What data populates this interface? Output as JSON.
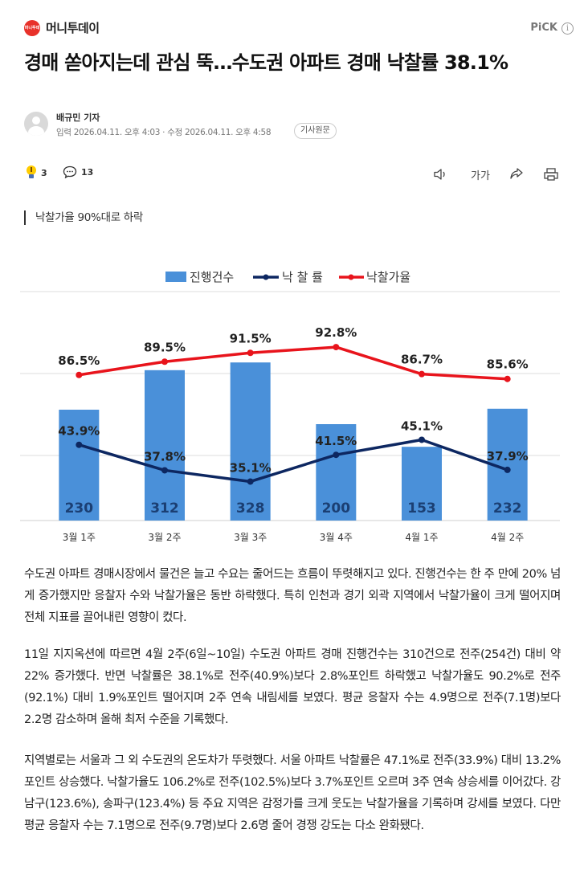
{
  "header": {
    "logo_text": "머니투데이",
    "brand": "머니투데이",
    "pick_label": "PiCK",
    "info_icon": "info-icon"
  },
  "article": {
    "title": "경매 쏟아지는데 관심 뚝…수도권 아파트 경매 낙찰률 38.1%",
    "reporter": "배규민 기자",
    "published": "입력 2026.04.11. 오후 4:03",
    "modified": "수정 2026.04.11. 오후 4:58",
    "original_button": "기사원문",
    "reactions": {
      "like_count": "3",
      "comment_count": "13"
    },
    "lede": "낙찰가율 90%대로 하락",
    "paragraphs": [
      "수도권 아파트 경매시장에서 물건은 늘고 수요는 줄어드는 흐름이 뚜렷해지고 있다. 진행건수는 한 주 만에 20% 넘게 증가했지만 응찰자 수와 낙찰가율은 동반 하락했다. 특히 인천과 경기 외곽 지역에서 낙찰가율이 크게 떨어지며 전체 지표를 끌어내린 영향이 컸다.",
      "11일 지지옥션에 따르면 4월 2주(6일~10일) 수도권 아파트 경매 진행건수는 310건으로 전주(254건) 대비 약 22% 증가했다. 반면 낙찰률은 38.1%로 전주(40.9%)보다 2.8%포인트 하락했고 낙찰가율도 90.2%로 전주(92.1%) 대비 1.9%포인트 떨어지며 2주 연속 내림세를 보였다. 평균 응찰자 수는 4.9명으로 전주(7.1명)보다 2.2명 감소하며 올해 최저 수준을 기록했다.",
      "지역별로는 서울과 그 외 수도권의 온도차가 뚜렷했다. 서울 아파트 낙찰률은 47.1%로 전주(33.9%) 대비 13.2%포인트 상승했다. 낙찰가율도 106.2%로 전주(102.5%)보다 3.7%포인트 오르며 3주 연속 상승세를 이어갔다. 강남구(123.6%), 송파구(123.4%) 등 주요 지역은 감정가를 크게 웃도는 낙찰가율을 기록하며 강세를 보였다. 다만 평균 응찰자 수는 7.1명으로 전주(9.7명)보다 2.6명 줄어 경쟁 강도는 다소 완화됐다."
    ]
  },
  "toolbar": {
    "audio_icon": "speaker-icon",
    "font_label": "가가",
    "share_icon": "share-icon",
    "print_icon": "print-icon"
  },
  "chart_data": {
    "type": "bar",
    "categories": [
      "3월 1주",
      "3월 2주",
      "3월 3주",
      "3월 4주",
      "4월 1주",
      "4월 2주"
    ],
    "series": [
      {
        "name": "진행건수",
        "kind": "bar",
        "color": "#4a90d9",
        "values": [
          230,
          312,
          328,
          200,
          153,
          232
        ]
      },
      {
        "name": "낙 찰 률",
        "kind": "line",
        "color": "#0d2761",
        "values": [
          43.9,
          37.8,
          35.1,
          41.5,
          45.1,
          37.9
        ],
        "labels": [
          "43.9%",
          "37.8%",
          "35.1%",
          "41.5%",
          "45.1%",
          "37.9%"
        ]
      },
      {
        "name": "낙찰가율",
        "kind": "line",
        "color": "#e8141c",
        "values": [
          86.5,
          89.5,
          91.5,
          92.8,
          86.7,
          85.6
        ],
        "labels": [
          "86.5%",
          "89.5%",
          "91.5%",
          "92.8%",
          "86.7%",
          "85.6%"
        ]
      }
    ],
    "legend_position": "top-center",
    "grid": true
  }
}
